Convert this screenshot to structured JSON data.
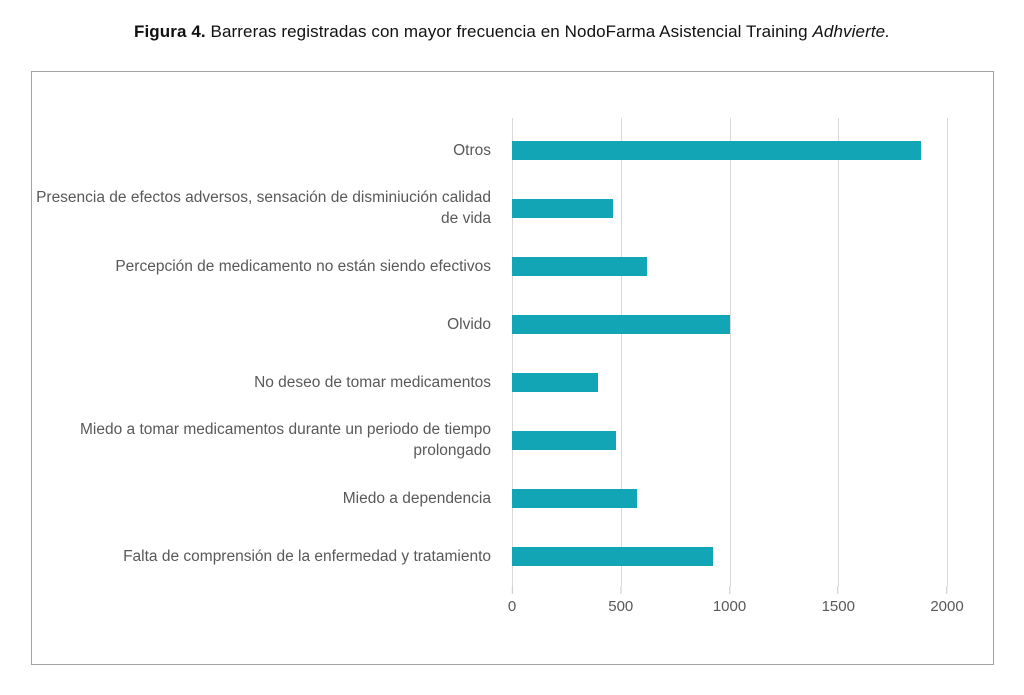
{
  "caption": {
    "prefix": "Figura 4.",
    "text": " Barreras registradas con mayor frecuencia en NodoFarma Asistencial Training ",
    "italic": "Adhvierte."
  },
  "chart_data": {
    "type": "bar",
    "orientation": "horizontal",
    "title": "",
    "xlabel": "",
    "ylabel": "",
    "categories": [
      "Otros",
      "Presencia de efectos adversos, sensación de disminiución calidad de vida",
      "Percepción de medicamento no están siendo efectivos",
      "Olvido",
      "No deseo de tomar medicamentos",
      "Miedo a tomar medicamentos durante un periodo de tiempo prolongado",
      "Miedo a dependencia",
      "Falta de comprensión de la enfermedad y tratamiento"
    ],
    "values": [
      1880,
      465,
      620,
      1000,
      395,
      480,
      575,
      925
    ],
    "xlim": [
      0,
      2000
    ],
    "x_ticks": [
      0,
      500,
      1000,
      1500,
      2000
    ],
    "grid": true,
    "legend": false,
    "colors": {
      "bar": "#11a5b6",
      "gridline": "#d9d9d9",
      "label": "#595959",
      "panel_border": "#a3a3a3"
    }
  }
}
